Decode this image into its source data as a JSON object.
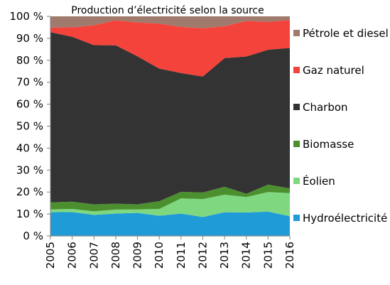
{
  "chart_data": {
    "type": "area",
    "stacked": true,
    "title": "Production d’électricité selon la source",
    "xlabel": "",
    "ylabel": "",
    "ylim": [
      0,
      100
    ],
    "yticks": [
      "0 %",
      "10 %",
      "20 %",
      "30 %",
      "40 %",
      "50 %",
      "60 %",
      "70 %",
      "80 %",
      "90 %",
      "100 %"
    ],
    "x": [
      "2005",
      "2006",
      "2007",
      "2008",
      "2009",
      "2010",
      "2011",
      "2012",
      "2013",
      "2014",
      "2015",
      "2016"
    ],
    "legend_position": "right",
    "series": [
      {
        "name": "Hydroélectricité",
        "color": "#1f9bd7",
        "values": [
          10.8,
          10.9,
          9.6,
          10.2,
          10.5,
          9.2,
          10.2,
          8.6,
          10.8,
          10.7,
          11.1,
          9.0
        ]
      },
      {
        "name": "Éolien",
        "color": "#7fd87f",
        "values": [
          1.3,
          1.4,
          1.6,
          1.8,
          1.6,
          3.1,
          6.9,
          8.2,
          8.0,
          7.0,
          8.9,
          10.5
        ]
      },
      {
        "name": "Biomasse",
        "color": "#4c8f2f",
        "values": [
          3.2,
          3.3,
          3.2,
          2.7,
          2.3,
          3.5,
          3.0,
          3.0,
          3.6,
          1.5,
          3.4,
          2.2
        ]
      },
      {
        "name": "Charbon",
        "color": "#333333",
        "values": [
          77.5,
          75.1,
          72.5,
          72.1,
          67.4,
          60.4,
          54.1,
          52.8,
          58.6,
          62.5,
          61.4,
          63.9
        ]
      },
      {
        "name": "Gaz naturel",
        "color": "#f4433b",
        "values": [
          2.1,
          4.3,
          9.0,
          11.4,
          15.4,
          20.5,
          21.0,
          22.0,
          14.5,
          16.2,
          12.7,
          12.7
        ]
      },
      {
        "name": "Pétrole et diesel",
        "color": "#a07a6c",
        "values": [
          5.1,
          5.0,
          4.1,
          1.8,
          2.8,
          3.3,
          4.8,
          5.4,
          4.5,
          2.1,
          2.5,
          1.7
        ]
      }
    ]
  }
}
